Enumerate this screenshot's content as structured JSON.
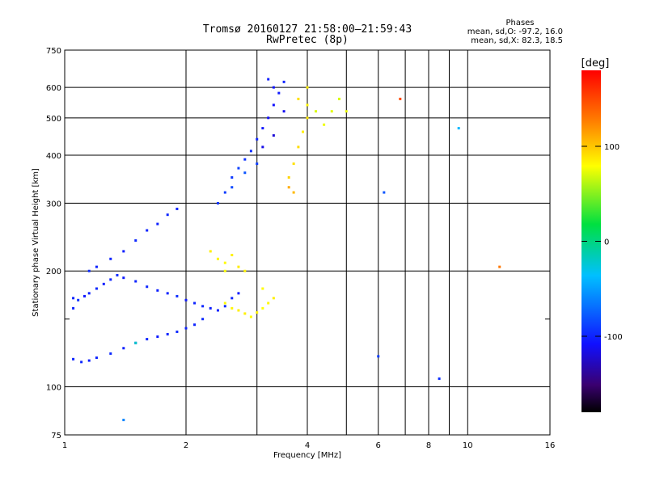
{
  "chart_data": {
    "type": "scatter",
    "title": "Tromsø 20160127 21:58:00–21:59:43",
    "subtitle": "RwPretec (8p)",
    "xlabel": "Frequency [MHz]",
    "ylabel": "Stationary phase Virtual Height [km]",
    "x_scale": "log",
    "y_scale": "log",
    "xlim": [
      1,
      16
    ],
    "ylim": [
      75,
      750
    ],
    "x_tick_labels": [
      "1",
      "2",
      "4",
      "6",
      "8",
      "10",
      "16"
    ],
    "x_ticks": [
      1,
      2,
      4,
      6,
      8,
      10,
      16
    ],
    "x_minor_ticks": [
      3,
      5,
      7,
      9
    ],
    "y_tick_labels": [
      "75",
      "100",
      "200",
      "300",
      "400",
      "500",
      "600",
      "750"
    ],
    "y_ticks": [
      75,
      100,
      200,
      300,
      400,
      500,
      600,
      750
    ],
    "y_minor_ticks": [
      150
    ],
    "grid": true,
    "stats": {
      "title": "Phases",
      "line1": "mean, sd,O: -97.2, 16.0",
      "line2": "mean, sd,X:  82.3, 18.5"
    },
    "colorbar": {
      "unit": "[deg]",
      "range": [
        -180,
        180
      ],
      "tick_labels": [
        "100",
        "0",
        "-100"
      ],
      "ticks": [
        100,
        0,
        -100
      ]
    },
    "series": [
      {
        "values_note": "each point: [frequency MHz, virtual height km, phase deg]",
        "points": [
          [
            1.05,
            170,
            -100
          ],
          [
            1.08,
            168,
            -95
          ],
          [
            1.12,
            172,
            -105
          ],
          [
            1.15,
            175,
            -100
          ],
          [
            1.2,
            180,
            -98
          ],
          [
            1.25,
            185,
            -102
          ],
          [
            1.3,
            190,
            -100
          ],
          [
            1.35,
            195,
            -97
          ],
          [
            1.4,
            192,
            -103
          ],
          [
            1.5,
            188,
            -100
          ],
          [
            1.6,
            182,
            -99
          ],
          [
            1.7,
            178,
            -101
          ],
          [
            1.8,
            175,
            -100
          ],
          [
            1.9,
            172,
            -96
          ],
          [
            2.0,
            168,
            -104
          ],
          [
            2.1,
            165,
            -100
          ],
          [
            2.2,
            162,
            -98
          ],
          [
            2.3,
            160,
            -102
          ],
          [
            2.4,
            158,
            -100
          ],
          [
            2.5,
            162,
            -97
          ],
          [
            2.6,
            170,
            -100
          ],
          [
            2.7,
            175,
            -103
          ],
          [
            1.05,
            118,
            -100
          ],
          [
            1.1,
            116,
            -98
          ],
          [
            1.15,
            117,
            -102
          ],
          [
            1.2,
            119,
            -100
          ],
          [
            1.3,
            122,
            -97
          ],
          [
            1.4,
            126,
            -101
          ],
          [
            1.5,
            130,
            -100
          ],
          [
            1.6,
            133,
            -99
          ],
          [
            1.7,
            135,
            -103
          ],
          [
            1.8,
            137,
            -100
          ],
          [
            1.9,
            139,
            -98
          ],
          [
            2.0,
            142,
            -101
          ],
          [
            2.1,
            145,
            -100
          ],
          [
            2.2,
            150,
            -97
          ],
          [
            1.3,
            215,
            -100
          ],
          [
            1.4,
            225,
            -102
          ],
          [
            1.5,
            240,
            -98
          ],
          [
            1.6,
            255,
            -100
          ],
          [
            1.7,
            265,
            -101
          ],
          [
            1.8,
            280,
            -99
          ],
          [
            1.9,
            290,
            -100
          ],
          [
            1.2,
            205,
            -100
          ],
          [
            1.15,
            200,
            -97
          ],
          [
            2.4,
            300,
            -95
          ],
          [
            2.5,
            320,
            -90
          ],
          [
            2.6,
            350,
            -92
          ],
          [
            2.7,
            370,
            -88
          ],
          [
            2.8,
            390,
            -94
          ],
          [
            2.9,
            410,
            -96
          ],
          [
            3.0,
            440,
            -100
          ],
          [
            3.1,
            470,
            -105
          ],
          [
            3.2,
            500,
            -110
          ],
          [
            3.3,
            540,
            -108
          ],
          [
            3.4,
            580,
            -104
          ],
          [
            3.5,
            620,
            -100
          ],
          [
            3.2,
            630,
            -102
          ],
          [
            3.3,
            600,
            -106
          ],
          [
            2.6,
            330,
            -85
          ],
          [
            2.8,
            360,
            -80
          ],
          [
            3.0,
            380,
            -90
          ],
          [
            3.1,
            420,
            -115
          ],
          [
            3.3,
            450,
            -120
          ],
          [
            3.5,
            520,
            -112
          ],
          [
            2.3,
            225,
            85
          ],
          [
            2.4,
            215,
            82
          ],
          [
            2.5,
            210,
            80
          ],
          [
            2.6,
            220,
            84
          ],
          [
            2.7,
            205,
            86
          ],
          [
            2.8,
            200,
            83
          ],
          [
            2.5,
            200,
            78
          ],
          [
            2.5,
            165,
            80
          ],
          [
            2.6,
            160,
            82
          ],
          [
            2.7,
            158,
            85
          ],
          [
            2.8,
            155,
            84
          ],
          [
            2.9,
            152,
            80
          ],
          [
            3.0,
            156,
            83
          ],
          [
            3.1,
            160,
            79
          ],
          [
            3.2,
            165,
            82
          ],
          [
            3.3,
            170,
            85
          ],
          [
            3.1,
            180,
            80
          ],
          [
            3.6,
            350,
            95
          ],
          [
            3.7,
            380,
            90
          ],
          [
            3.8,
            420,
            92
          ],
          [
            3.9,
            460,
            85
          ],
          [
            4.0,
            500,
            88
          ],
          [
            4.0,
            540,
            82
          ],
          [
            3.8,
            560,
            90
          ],
          [
            4.0,
            600,
            86
          ],
          [
            3.6,
            330,
            110
          ],
          [
            3.7,
            320,
            105
          ],
          [
            4.2,
            520,
            70
          ],
          [
            4.4,
            480,
            75
          ],
          [
            4.6,
            520,
            72
          ],
          [
            4.8,
            560,
            70
          ],
          [
            5.0,
            520,
            74
          ],
          [
            6.2,
            320,
            -80
          ],
          [
            6.0,
            120,
            -90
          ],
          [
            8.5,
            105,
            -95
          ],
          [
            9.5,
            470,
            -40
          ],
          [
            6.8,
            560,
            150
          ],
          [
            12.0,
            205,
            130
          ],
          [
            1.4,
            82,
            -60
          ],
          [
            1.5,
            130,
            -20
          ],
          [
            1.05,
            160,
            -100
          ]
        ]
      }
    ]
  }
}
